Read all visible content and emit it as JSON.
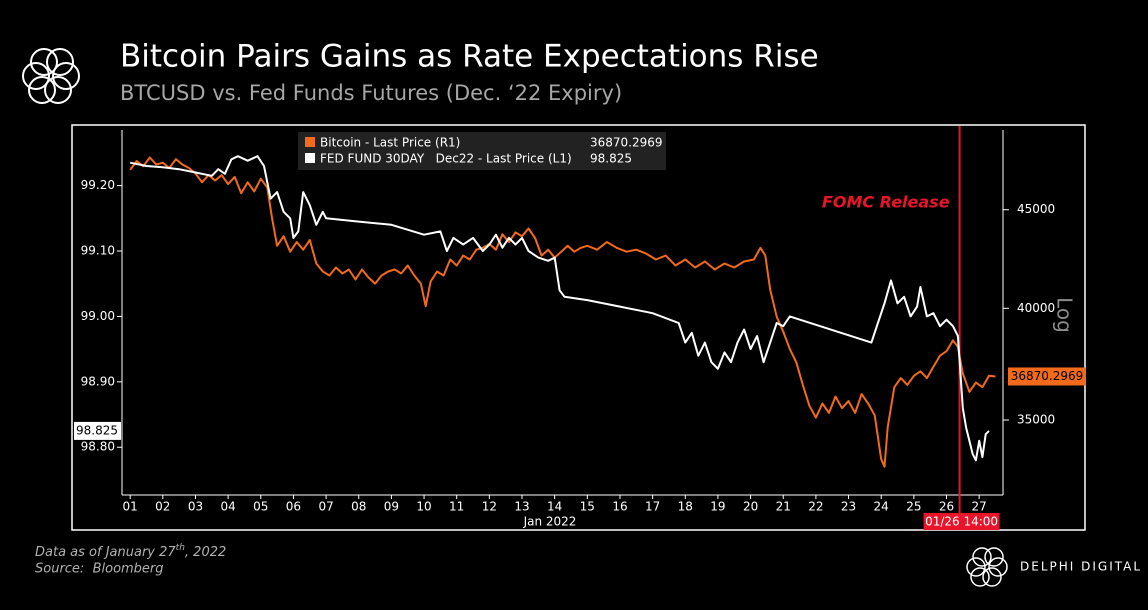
{
  "chart_data": {
    "type": "line",
    "title": "Bitcoin Pairs Gains as Rate Expectations Rise",
    "subtitle": "BTCUSD vs. Fed Funds Futures (Dec. ‘22 Expiry)",
    "xlabel": "Jan 2022",
    "y2label": "Log",
    "y2scale": "log",
    "grid": false,
    "xlim": [
      0.75,
      27.73
    ],
    "xticks": [
      {
        "value": 1,
        "label": "01"
      },
      {
        "value": 2,
        "label": "02"
      },
      {
        "value": 3,
        "label": "03"
      },
      {
        "value": 4,
        "label": "04"
      },
      {
        "value": 5,
        "label": "05"
      },
      {
        "value": 6,
        "label": "06"
      },
      {
        "value": 7,
        "label": "07"
      },
      {
        "value": 8,
        "label": "08"
      },
      {
        "value": 9,
        "label": "09"
      },
      {
        "value": 10,
        "label": "10"
      },
      {
        "value": 11,
        "label": "11"
      },
      {
        "value": 12,
        "label": "12"
      },
      {
        "value": 13,
        "label": "13"
      },
      {
        "value": 14,
        "label": "14"
      },
      {
        "value": 15,
        "label": "15"
      },
      {
        "value": 16,
        "label": "16"
      },
      {
        "value": 17,
        "label": "17"
      },
      {
        "value": 18,
        "label": "18"
      },
      {
        "value": 19,
        "label": "19"
      },
      {
        "value": 20,
        "label": "20"
      },
      {
        "value": 21,
        "label": "21"
      },
      {
        "value": 22,
        "label": "22"
      },
      {
        "value": 23,
        "label": "23"
      },
      {
        "value": 24,
        "label": "24"
      },
      {
        "value": 25,
        "label": "25"
      },
      {
        "value": 26,
        "label": "26"
      },
      {
        "value": 27,
        "label": "27"
      }
    ],
    "ylim": [
      98.727,
      99.285
    ],
    "yticks": [
      {
        "value": 98.8,
        "label": "98.80"
      },
      {
        "value": 98.9,
        "label": "98.90"
      },
      {
        "value": 99.0,
        "label": "99.00"
      },
      {
        "value": 99.1,
        "label": "99.10"
      },
      {
        "value": 99.2,
        "label": "99.20"
      }
    ],
    "y2lim": [
      32000,
      49500
    ],
    "y2ticks": [
      35000,
      40000,
      45000
    ],
    "series": [
      {
        "name": "Bitcoin - Last Price (R1)",
        "color": "#f26a1b",
        "axis": "y2",
        "last_value": 36870.2969,
        "x": [
          1.0,
          1.2,
          1.4,
          1.6,
          1.8,
          2.0,
          2.2,
          2.4,
          2.6,
          2.8,
          3.0,
          3.2,
          3.4,
          3.6,
          3.8,
          4.0,
          4.2,
          4.4,
          4.6,
          4.8,
          5.0,
          5.2,
          5.35,
          5.5,
          5.7,
          5.9,
          6.1,
          6.3,
          6.5,
          6.7,
          6.9,
          7.1,
          7.3,
          7.5,
          7.7,
          7.9,
          8.1,
          8.3,
          8.5,
          8.7,
          8.9,
          9.1,
          9.3,
          9.5,
          9.7,
          9.9,
          10.05,
          10.2,
          10.4,
          10.6,
          10.8,
          11.0,
          11.2,
          11.4,
          11.6,
          11.8,
          12.0,
          12.2,
          12.4,
          12.6,
          12.8,
          13.0,
          13.2,
          13.4,
          13.6,
          13.8,
          14.0,
          14.2,
          14.4,
          14.6,
          14.8,
          15.0,
          15.3,
          15.6,
          15.9,
          16.2,
          16.5,
          16.8,
          17.1,
          17.4,
          17.7,
          18.0,
          18.3,
          18.6,
          18.9,
          19.2,
          19.5,
          19.8,
          20.1,
          20.3,
          20.45,
          20.6,
          20.8,
          21.0,
          21.2,
          21.4,
          21.6,
          21.8,
          22.0,
          22.2,
          22.4,
          22.6,
          22.8,
          23.0,
          23.2,
          23.4,
          23.6,
          23.8,
          24.0,
          24.1,
          24.2,
          24.4,
          24.6,
          24.8,
          25.0,
          25.2,
          25.4,
          25.6,
          25.8,
          26.0,
          26.2,
          26.35,
          26.5,
          26.7,
          26.9,
          27.1,
          27.3,
          27.5
        ],
        "values": [
          47200,
          47700,
          47400,
          47900,
          47500,
          47600,
          47300,
          47800,
          47500,
          47300,
          47000,
          46500,
          46900,
          46600,
          46900,
          46400,
          46800,
          45900,
          46500,
          46000,
          46700,
          46200,
          44500,
          43100,
          43600,
          42800,
          43300,
          42900,
          43400,
          42200,
          41800,
          41600,
          42000,
          41700,
          41900,
          41400,
          41900,
          41500,
          41200,
          41600,
          41800,
          41900,
          41700,
          42100,
          41600,
          41200,
          40100,
          41300,
          41800,
          41600,
          42400,
          42100,
          42600,
          42400,
          42900,
          43000,
          43200,
          42900,
          43700,
          43300,
          43800,
          43600,
          44000,
          43500,
          42600,
          42900,
          42500,
          42800,
          43100,
          42800,
          43000,
          43100,
          42900,
          43300,
          43000,
          42800,
          42900,
          42700,
          42400,
          42600,
          42100,
          42400,
          42000,
          42300,
          41900,
          42200,
          42000,
          42300,
          42400,
          43000,
          42600,
          40900,
          39600,
          38900,
          38100,
          37500,
          36500,
          35600,
          35100,
          35700,
          35300,
          36000,
          35500,
          35800,
          35300,
          36100,
          35700,
          35200,
          33400,
          33100,
          34700,
          36400,
          36800,
          36500,
          36900,
          37100,
          36800,
          37300,
          37800,
          38000,
          38500,
          38200,
          37000,
          36200,
          36600,
          36400,
          36900,
          36870.2969
        ]
      },
      {
        "name": "FED FUND 30DAY   Dec22 - Last Price (L1)",
        "color": "#ffffff",
        "axis": "y",
        "last_value": 98.825,
        "x": [
          1.0,
          1.5,
          2.0,
          2.5,
          3.0,
          3.5,
          3.7,
          3.9,
          4.1,
          4.3,
          4.6,
          4.9,
          5.1,
          5.3,
          5.5,
          5.7,
          5.9,
          6.0,
          6.15,
          6.3,
          6.5,
          6.7,
          6.9,
          7.0,
          8.0,
          9.0,
          10.0,
          10.5,
          10.7,
          10.9,
          11.2,
          11.5,
          11.8,
          12.0,
          12.2,
          12.4,
          12.6,
          12.8,
          13.0,
          13.2,
          13.5,
          13.8,
          14.0,
          14.15,
          14.3,
          15.0,
          16.0,
          17.0,
          17.8,
          18.0,
          18.2,
          18.4,
          18.6,
          18.8,
          19.0,
          19.2,
          19.4,
          19.6,
          19.8,
          20.0,
          20.2,
          20.4,
          20.6,
          20.8,
          21.0,
          21.2,
          23.7,
          23.9,
          24.1,
          24.3,
          24.5,
          24.7,
          24.9,
          25.1,
          25.2,
          25.4,
          25.6,
          25.8,
          26.0,
          26.2,
          26.35,
          26.5,
          26.6,
          26.8,
          26.9,
          27.0,
          27.1,
          27.2,
          27.3
        ],
        "values": [
          99.235,
          99.23,
          99.228,
          99.225,
          99.22,
          99.215,
          99.225,
          99.218,
          99.24,
          99.245,
          99.238,
          99.245,
          99.23,
          99.18,
          99.19,
          99.16,
          99.15,
          99.12,
          99.13,
          99.19,
          99.17,
          99.14,
          99.16,
          99.15,
          99.145,
          99.14,
          99.125,
          99.13,
          99.1,
          99.12,
          99.11,
          99.12,
          99.1,
          99.11,
          99.125,
          99.105,
          99.12,
          99.11,
          99.12,
          99.1,
          99.09,
          99.085,
          99.09,
          99.04,
          99.03,
          99.025,
          99.015,
          99.005,
          98.99,
          98.96,
          98.975,
          98.94,
          98.96,
          98.93,
          98.92,
          98.945,
          98.93,
          98.96,
          98.98,
          98.95,
          98.97,
          98.93,
          98.96,
          98.99,
          98.985,
          99.0,
          98.96,
          98.99,
          99.02,
          99.055,
          99.02,
          99.03,
          99.0,
          99.015,
          99.045,
          99.0,
          99.005,
          98.985,
          98.995,
          98.985,
          98.97,
          98.86,
          98.83,
          98.79,
          98.78,
          98.81,
          98.785,
          98.82,
          98.825
        ]
      }
    ],
    "annotation": {
      "text": "FOMC Release",
      "x": 26.4,
      "label": "01/26 14:00",
      "color": "#e8142a"
    },
    "footer": {
      "line1": "Data as of January 27",
      "line1_sup": "th",
      "line1_end": ", 2022",
      "line2": "Source:  Bloomberg",
      "brand": "DELPHI DIGITAL"
    }
  }
}
